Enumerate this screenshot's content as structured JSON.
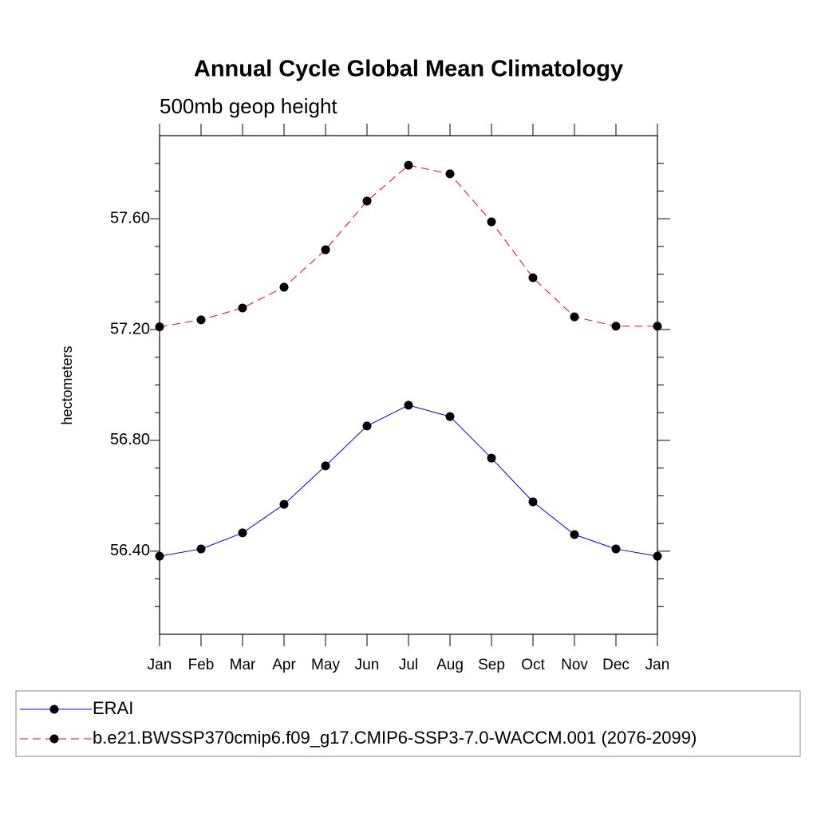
{
  "chart_data": {
    "type": "line",
    "title": "Annual Cycle Global Mean Climatology",
    "subtitle": "500mb geop height",
    "y_label": "hectometers",
    "categories": [
      "Jan",
      "Feb",
      "Mar",
      "Apr",
      "May",
      "Jun",
      "Jul",
      "Aug",
      "Sep",
      "Oct",
      "Nov",
      "Dec",
      "Jan"
    ],
    "series": [
      {
        "name": "ERAI",
        "color": "#0000ff",
        "dash": "solid",
        "values": [
          56.382,
          56.408,
          56.466,
          56.569,
          56.708,
          56.852,
          56.927,
          56.886,
          56.736,
          56.578,
          56.46,
          56.408,
          56.382
        ]
      },
      {
        "name": "b.e21.BWSSP370cmip6.f09_g17.CMIP6-SSP3-7.0-WACCM.001 (2076-2099)",
        "color": "#ff0000",
        "dash": "dashed",
        "values": [
          57.21,
          57.235,
          57.278,
          57.353,
          57.488,
          57.664,
          57.793,
          57.762,
          57.589,
          57.387,
          57.246,
          57.212,
          57.212
        ]
      }
    ],
    "ylim": [
      56.1,
      57.9
    ],
    "yticks": [
      {
        "value": 56.4,
        "label": "56.40"
      },
      {
        "value": 56.8,
        "label": "56.80"
      },
      {
        "value": 57.2,
        "label": "57.20"
      },
      {
        "value": 57.6,
        "label": "57.60"
      }
    ],
    "yminorticks": [
      56.2,
      56.3,
      56.5,
      56.6,
      56.7,
      56.9,
      57.0,
      57.1,
      57.3,
      57.4,
      57.5,
      57.7,
      57.8
    ],
    "legend": "bottom"
  }
}
